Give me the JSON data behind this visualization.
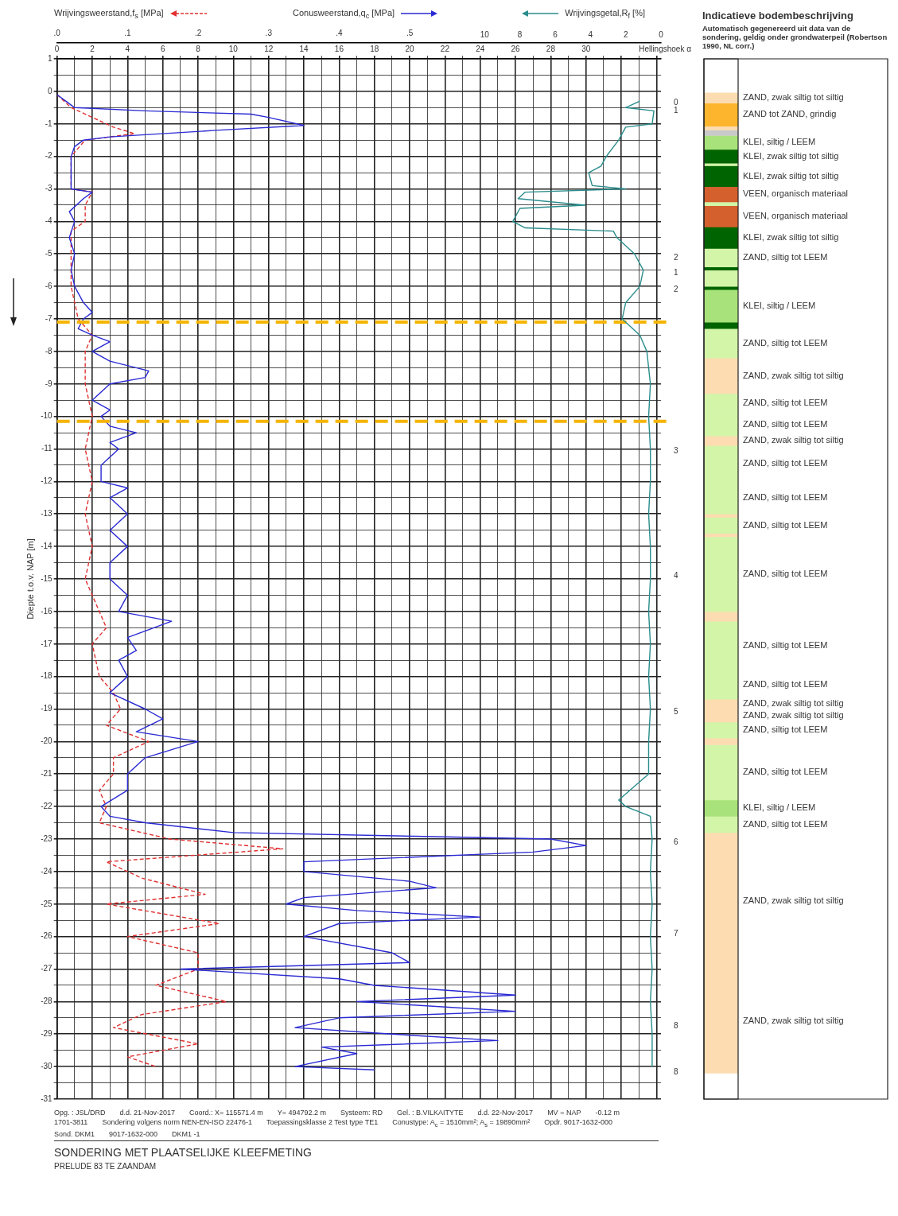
{
  "chart_data": [
    {
      "type": "line",
      "title": "SONDERING MET PLAATSELIJKE KLEEFMETING",
      "subtitle": "PRELUDE 83 TE ZAANDAM",
      "xlabel": "Conusweerstand,q$_{c}$ [MPa]",
      "x2label": "Wrijvingsweerstand,f$_{s}$ [MPa]",
      "ylabel": "Diepte t.o.v. NAP [m]",
      "xlim": [
        0,
        34.25
      ],
      "xticks": [
        0,
        {
          "value": 1,
          "label": null
        },
        2,
        {
          "value": 3,
          "label": null
        },
        4,
        {
          "value": 5,
          "label": null
        },
        6,
        {
          "value": 7,
          "label": null
        },
        8,
        {
          "value": 9,
          "label": null
        },
        10,
        {
          "value": 11,
          "label": null
        },
        12,
        {
          "value": 13,
          "label": null
        },
        14,
        {
          "value": 15,
          "label": null
        },
        16,
        {
          "value": 17,
          "label": null
        },
        18,
        {
          "value": 19,
          "label": null
        },
        20,
        {
          "value": 21,
          "label": null
        },
        22,
        {
          "value": 23,
          "label": null
        },
        24,
        {
          "value": 25,
          "label": null
        },
        26,
        {
          "value": 27,
          "label": null
        },
        28,
        {
          "value": 29,
          "label": null
        },
        30,
        {
          "value": 31,
          "label": null
        },
        {
          "value": 32,
          "label": null
        },
        {
          "value": 33,
          "label": null
        },
        {
          "value": 34,
          "label": null
        }
      ],
      "x2lim": [
        0,
        0.856
      ],
      "x2ticks": [
        {
          "value": 0,
          "label": ".0"
        },
        {
          "value": 0.1,
          "label": ".1"
        },
        {
          "value": 0.2,
          "label": ".2"
        },
        {
          "value": 0.3,
          "label": ".3"
        },
        {
          "value": 0.4,
          "label": ".4"
        },
        {
          "value": 0.5,
          "label": ".5"
        }
      ],
      "ylim": [
        -31,
        1
      ],
      "yticks": [
        -31,
        {
          "value": -30.5,
          "label": null
        },
        -30,
        {
          "value": -29.5,
          "label": null
        },
        -29,
        {
          "value": -28.5,
          "label": null
        },
        -28,
        {
          "value": -27.5,
          "label": null
        },
        -27,
        {
          "value": -26.5,
          "label": null
        },
        -26,
        {
          "value": -25.5,
          "label": null
        },
        -25,
        {
          "value": -24.5,
          "label": null
        },
        -24,
        {
          "value": -23.5,
          "label": null
        },
        -23,
        {
          "value": -22.5,
          "label": null
        },
        -22,
        {
          "value": -21.5,
          "label": null
        },
        -21,
        {
          "value": -20.5,
          "label": null
        },
        -20,
        {
          "value": -19.5,
          "label": null
        },
        -19,
        {
          "value": -18.5,
          "label": null
        },
        -18,
        {
          "value": -17.5,
          "label": null
        },
        -17,
        {
          "value": -16.5,
          "label": null
        },
        -16,
        {
          "value": -15.5,
          "label": null
        },
        -15,
        {
          "value": -14.5,
          "label": null
        },
        -14,
        {
          "value": -13.5,
          "label": null
        },
        -13,
        {
          "value": -12.5,
          "label": null
        },
        -12,
        {
          "value": -11.5,
          "label": null
        },
        -11,
        {
          "value": -10.5,
          "label": null
        },
        -10,
        {
          "value": -9.5,
          "label": null
        },
        -9,
        {
          "value": -8.5,
          "label": null
        },
        -8,
        {
          "value": -7.5,
          "label": null
        },
        -7,
        {
          "value": -6.5,
          "label": null
        },
        -6,
        {
          "value": -5.5,
          "label": null
        },
        -5,
        {
          "value": -4.5,
          "label": null
        },
        -4,
        {
          "value": -3.5,
          "label": null
        },
        -3,
        {
          "value": -2.5,
          "label": null
        },
        -2,
        {
          "value": -1.5,
          "label": null
        },
        -1,
        {
          "value": -0.5,
          "label": null
        },
        0,
        {
          "value": 0.5,
          "label": null
        },
        1
      ],
      "grid": true,
      "marker": "none",
      "legend": false,
      "series": [
        {
          "color": "#2a2ad4",
          "x": [
            0,
            0.5,
            1,
            5,
            11,
            12,
            14,
            9,
            3,
            1.5,
            1,
            0.8,
            0.8,
            2,
            1.5,
            0.7,
            1,
            0.7,
            1,
            0.8,
            1,
            1.5,
            2,
            1.5,
            1.2,
            2,
            3,
            2,
            3,
            5.2,
            5,
            3,
            2,
            3,
            2.5,
            3,
            4.5,
            3,
            3.5,
            2.5,
            2.5,
            4,
            3,
            4,
            3,
            4,
            3,
            3,
            4,
            3.5,
            6.5,
            4,
            4.5,
            3.5,
            4,
            3,
            5,
            6,
            4.5,
            8,
            5,
            4,
            4,
            2.5,
            3,
            5,
            10,
            28,
            30,
            27,
            14,
            14,
            20,
            21.5,
            14,
            13,
            17,
            24,
            16,
            14,
            19,
            20,
            7,
            16,
            18,
            26,
            17,
            26,
            16,
            13.5,
            19,
            25,
            15,
            17,
            13.5,
            18
          ],
          "values": [
            -0.1,
            -0.3,
            -0.5,
            -0.6,
            -0.7,
            -0.8,
            -1.05,
            -1.2,
            -1.4,
            -1.5,
            -1.7,
            -2,
            -3,
            -3.1,
            -3.3,
            -3.7,
            -4,
            -4.5,
            -5,
            -5.5,
            -6,
            -6.5,
            -6.8,
            -7,
            -7.3,
            -7.5,
            -7.7,
            -8,
            -8.3,
            -8.6,
            -8.8,
            -9,
            -9.5,
            -9.8,
            -10,
            -10.3,
            -10.5,
            -10.8,
            -11,
            -11.5,
            -12,
            -12.2,
            -12.5,
            -13,
            -13.5,
            -14,
            -14.5,
            -15,
            -15.5,
            -16,
            -16.3,
            -16.8,
            -17.2,
            -17.5,
            -18,
            -18.5,
            -19,
            -19.3,
            -19.7,
            -20,
            -20.5,
            -21,
            -21.5,
            -22,
            -22.3,
            -22.5,
            -22.8,
            -23,
            -23.2,
            -23.4,
            -23.7,
            -24,
            -24.3,
            -24.5,
            -24.8,
            -25,
            -25.2,
            -25.4,
            -25.6,
            -26,
            -26.5,
            -26.8,
            -27,
            -27.3,
            -27.5,
            -27.8,
            -28,
            -28.3,
            -28.5,
            -28.8,
            -29,
            -29.2,
            -29.4,
            -29.6,
            -30,
            -30.1
          ]
        },
        {
          "color": "#e03030",
          "axis": "x2",
          "line_style": "dashed",
          "x": [
            0,
            0.02,
            0.05,
            0.08,
            0.11,
            0.04,
            0.02,
            0.02,
            0.05,
            0.04,
            0.04,
            0.02,
            0.02,
            0.02,
            0.03,
            0.05,
            0.04,
            0.04,
            0.05,
            0.04,
            0.05,
            0.04,
            0.05,
            0.04,
            0.06,
            0.07,
            0.05,
            0.06,
            0.08,
            0.09,
            0.07,
            0.13,
            0.08,
            0.08,
            0.06,
            0.07,
            0.06,
            0.16,
            0.32,
            0.07,
            0.12,
            0.21,
            0.07,
            0.15,
            0.23,
            0.1,
            0.2,
            0.2,
            0.14,
            0.24,
            0.12,
            0.08,
            0.2,
            0.1,
            0.14
          ],
          "values": [
            -0.1,
            -0.5,
            -0.8,
            -1.1,
            -1.3,
            -1.5,
            -2,
            -3,
            -3.1,
            -3.5,
            -4,
            -4.3,
            -5,
            -6,
            -7,
            -7.5,
            -8,
            -9,
            -10,
            -11,
            -12,
            -13,
            -14,
            -15,
            -16,
            -16.5,
            -17,
            -18,
            -18.5,
            -19,
            -19.5,
            -20,
            -20.5,
            -21,
            -21.5,
            -22,
            -22.5,
            -23,
            -23.3,
            -23.7,
            -24.2,
            -24.7,
            -25,
            -25.3,
            -25.6,
            -26,
            -26.5,
            -27,
            -27.5,
            -28,
            -28.4,
            -28.8,
            -29.3,
            -29.7,
            -30
          ]
        }
      ],
      "ref_lines": [
        {
          "axis": "y",
          "value": -7.1,
          "color": "#f5b400",
          "line_style": "dashed"
        },
        {
          "axis": "y",
          "value": -10.15,
          "color": "#f5b400",
          "line_style": "dashed"
        }
      ],
      "annotations": [
        "Hellingshoek α",
        "0",
        "1",
        "2",
        "1",
        "2",
        "3",
        "4",
        "5",
        "6",
        "7",
        "8",
        "8",
        "Opg. : JSL/DRD",
        "d.d. 21-Nov-2017",
        "Coord.: X= 115571.4 m",
        "Y= 494792.2 m",
        "Systeem: RD",
        "Gel. : B.VILKAITYTE",
        "d.d. 22-Nov-2017",
        "MV = NAP",
        "-0.12 m",
        "1701-3811",
        "Sondering volgens norm NEN-EN-ISO 22476-1",
        "Toepassingsklasse 2   Test type TE1",
        "Conustype: A$_{c}$ = 1510mm²;   A$_{s}$ = 19890mm²",
        "Opdr.   9017-1632-000",
        "Sond.   DKM1",
        "9017-1632-000",
        "DKM1 -1"
      ]
    },
    {
      "type": "line",
      "xlabel": "Wrijvingsgetal,R$_{f}$ [%]",
      "xlim": [
        10,
        0
      ],
      "xticks": [
        10,
        8,
        6,
        4,
        2,
        0
      ],
      "ylim": [
        -31,
        1
      ],
      "tick_labels": "x",
      "grid": false,
      "marker": "none",
      "legend": false,
      "series": [
        {
          "color": "#2a8c8c",
          "x": [
            1.2,
            2,
            0.4,
            0.5,
            2,
            2.4,
            3.1,
            3.4,
            4.1,
            3.9,
            2,
            7.7,
            8.1,
            4.3,
            8,
            8.4,
            7.7,
            2.7,
            2.5,
            1.5,
            1,
            1.2,
            2,
            2.2,
            1.2,
            0.8,
            0.6,
            0.7,
            0.6,
            0.6,
            0.7,
            0.6,
            0.6,
            0.7,
            0.6,
            0.7,
            0.6,
            0.7,
            0.7,
            2.4,
            2,
            0.6,
            0.5,
            0.6,
            0.5,
            0.6,
            0.5,
            0.6,
            0.5,
            0.5
          ],
          "values": [
            -0.3,
            -0.5,
            -0.6,
            -1,
            -1.1,
            -1.5,
            -2,
            -2.3,
            -2.5,
            -2.9,
            -3,
            -3.1,
            -3.3,
            -3.5,
            -3.6,
            -4,
            -4.2,
            -4.3,
            -4.5,
            -5,
            -5.5,
            -6,
            -6.5,
            -7,
            -7.5,
            -8,
            -9,
            -10,
            -11,
            -12,
            -13,
            -14,
            -15,
            -16,
            -17,
            -18,
            -19,
            -20,
            -21,
            -21.8,
            -22,
            -22.3,
            -23,
            -24,
            -25,
            -26,
            -27,
            -28,
            -29,
            -30
          ]
        }
      ]
    },
    {
      "type": "bar",
      "title": "Indicatieve bodembeschrijving",
      "subtitle": "Automatisch gegenereerd uit data van de sondering, geldig onder grondwaterpeil (Robertson 1990, NL corr.)",
      "categories": [
        null
      ],
      "ylim": [
        -31,
        1
      ],
      "tick_labels": false,
      "legend": false,
      "series": [
        {
          "name": "ZAND, zwak siltig tot siltig",
          "color": "#fcdcb0",
          "base": [
            -0.05
          ],
          "values": [
            -0.31
          ]
        },
        {
          "name": "ZAND tot ZAND, grindig",
          "color": "#fdb52e",
          "base": [
            -0.36
          ],
          "values": [
            -0.71
          ]
        },
        {
          "color": "#fcdcb0",
          "base": [
            -1.07
          ],
          "values": [
            -0.12
          ]
        },
        {
          "color": "#c9c9c9",
          "base": [
            -1.19
          ],
          "values": [
            -0.17
          ]
        },
        {
          "name": "KLEI, siltig / LEEM",
          "color": "#a8e27a",
          "base": [
            -1.36
          ],
          "values": [
            -0.43
          ]
        },
        {
          "name": "KLEI, zwak siltig tot siltig",
          "color": "#006400",
          "base": [
            -1.79
          ],
          "values": [
            -0.42
          ]
        },
        {
          "color": "#d3f5a8",
          "base": [
            -2.21
          ],
          "values": [
            -0.08
          ]
        },
        {
          "name": "KLEI, zwak siltig tot siltig",
          "color": "#006400",
          "base": [
            -2.29
          ],
          "values": [
            -0.64
          ]
        },
        {
          "name": "VEEN, organisch materiaal",
          "color": "#d4602e",
          "base": [
            -2.93
          ],
          "values": [
            -0.47
          ]
        },
        {
          "color": "#d3f5a8",
          "base": [
            -3.4
          ],
          "values": [
            -0.12
          ]
        },
        {
          "name": "VEEN, organisch materiaal",
          "color": "#d4602e",
          "base": [
            -3.52
          ],
          "values": [
            -0.65
          ]
        },
        {
          "name": "KLEI, zwak siltig tot siltig",
          "color": "#006400",
          "base": [
            -4.17
          ],
          "values": [
            -0.66
          ]
        },
        {
          "name": "ZAND, siltig tot LEEM",
          "color": "#d3f5a8",
          "base": [
            -4.83
          ],
          "values": [
            -0.57
          ]
        },
        {
          "color": "#006400",
          "base": [
            -5.4
          ],
          "values": [
            -0.1
          ]
        },
        {
          "color": "#d3f5a8",
          "base": [
            -5.5
          ],
          "values": [
            -0.5
          ]
        },
        {
          "color": "#006400",
          "base": [
            -6
          ],
          "values": [
            -0.1
          ]
        },
        {
          "name": "KLEI, siltig / LEEM",
          "color": "#a8e27a",
          "base": [
            -6.1
          ],
          "values": [
            -1
          ]
        },
        {
          "color": "#006400",
          "base": [
            -7.1
          ],
          "values": [
            -0.2
          ]
        },
        {
          "name": "ZAND, siltig tot LEEM",
          "color": "#d3f5a8",
          "base": [
            -7.3
          ],
          "values": [
            -0.9
          ]
        },
        {
          "name": "ZAND, zwak siltig tot siltig",
          "color": "#fcdcb0",
          "base": [
            -8.2
          ],
          "values": [
            -1.1
          ]
        },
        {
          "name": "ZAND, siltig tot LEEM",
          "color": "#d3f5a8",
          "base": [
            -9.3
          ],
          "values": [
            -0.6
          ]
        },
        {
          "name": "ZAND, siltig tot LEEM",
          "color": "#d3f5a8",
          "base": [
            -9.9
          ],
          "values": [
            -0.7
          ]
        },
        {
          "name": "ZAND, zwak siltig tot siltig",
          "color": "#fcdcb0",
          "base": [
            -10.6
          ],
          "values": [
            -0.3
          ]
        },
        {
          "name": "ZAND, siltig tot LEEM",
          "color": "#d3f5a8",
          "base": [
            -10.9
          ],
          "values": [
            -1.1
          ]
        },
        {
          "name": "ZAND, siltig tot LEEM",
          "color": "#d3f5a8",
          "base": [
            -12
          ],
          "values": [
            -1
          ]
        },
        {
          "color": "#fcdcb0",
          "base": [
            -13
          ],
          "values": [
            -0.1
          ]
        },
        {
          "name": "ZAND, siltig tot LEEM",
          "color": "#d3f5a8",
          "base": [
            -13.1
          ],
          "values": [
            -0.5
          ]
        },
        {
          "color": "#fcdcb0",
          "base": [
            -13.6
          ],
          "values": [
            -0.1
          ]
        },
        {
          "name": "ZAND, siltig tot LEEM",
          "color": "#d3f5a8",
          "base": [
            -13.7
          ],
          "values": [
            -2.3
          ]
        },
        {
          "color": "#fcdcb0",
          "base": [
            -16
          ],
          "values": [
            -0.3
          ]
        },
        {
          "name": "ZAND, siltig tot LEEM",
          "color": "#d3f5a8",
          "base": [
            -16.3
          ],
          "values": [
            -1.5
          ]
        },
        {
          "name": "ZAND, siltig tot LEEM",
          "color": "#d3f5a8",
          "base": [
            -17.8
          ],
          "values": [
            -0.9
          ]
        },
        {
          "name": "ZAND, zwak siltig tot siltig",
          "color": "#fcdcb0",
          "base": [
            -18.7
          ],
          "values": [
            -0.3
          ]
        },
        {
          "name": "ZAND, zwak siltig tot siltig",
          "color": "#fcdcb0",
          "base": [
            -19
          ],
          "values": [
            -0.4
          ]
        },
        {
          "name": "ZAND, siltig tot LEEM",
          "color": "#d3f5a8",
          "base": [
            -19.4
          ],
          "values": [
            -0.5
          ]
        },
        {
          "color": "#fcdcb0",
          "base": [
            -19.9
          ],
          "values": [
            -0.2
          ]
        },
        {
          "name": "ZAND, siltig tot LEEM",
          "color": "#d3f5a8",
          "base": [
            -20.1
          ],
          "values": [
            -1.7
          ]
        },
        {
          "name": "KLEI, siltig / LEEM",
          "color": "#a8e27a",
          "base": [
            -21.8
          ],
          "values": [
            -0.5
          ]
        },
        {
          "name": "ZAND, siltig tot LEEM",
          "color": "#d3f5a8",
          "base": [
            -22.3
          ],
          "values": [
            -0.5
          ]
        },
        {
          "name": "ZAND, zwak siltig tot siltig",
          "color": "#fcdcb0",
          "base": [
            -22.8
          ],
          "values": [
            -4.2
          ]
        },
        {
          "name": "ZAND, zwak siltig tot siltig",
          "color": "#fcdcb0",
          "base": [
            -27
          ],
          "values": [
            -3.2
          ]
        }
      ]
    }
  ]
}
